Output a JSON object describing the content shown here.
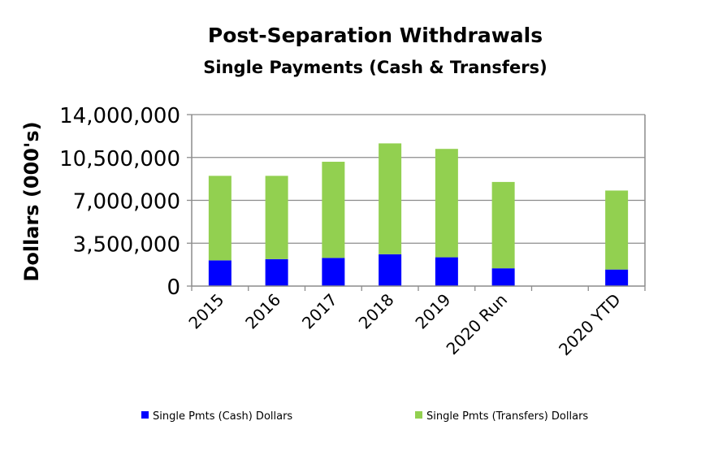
{
  "chart_data": {
    "type": "bar",
    "stacked": true,
    "title": "Post-Separation Withdrawals",
    "subtitle": "Single Payments (Cash & Transfers)",
    "xlabel": "",
    "ylabel": "Dollars (000's)",
    "ylim": [
      0,
      14000000
    ],
    "yticks": [
      "0",
      "3,500,000",
      "7,000,000",
      "10,500,000",
      "14,000,000"
    ],
    "grid": true,
    "legend_position": "bottom",
    "categories": [
      "2015",
      "2016",
      "2017",
      "2018",
      "2019",
      "2020 Run",
      "",
      "2020 YTD"
    ],
    "series": [
      {
        "name": "Single Pmts (Cash) Dollars",
        "color": "#0000ff",
        "values": [
          2100000,
          2200000,
          2300000,
          2600000,
          2350000,
          1450000,
          0,
          1350000
        ]
      },
      {
        "name": "Single Pmts (Transfers) Dollars",
        "color": "#92d050",
        "values": [
          6900000,
          6800000,
          7850000,
          9050000,
          8850000,
          7050000,
          0,
          6450000
        ]
      }
    ]
  }
}
